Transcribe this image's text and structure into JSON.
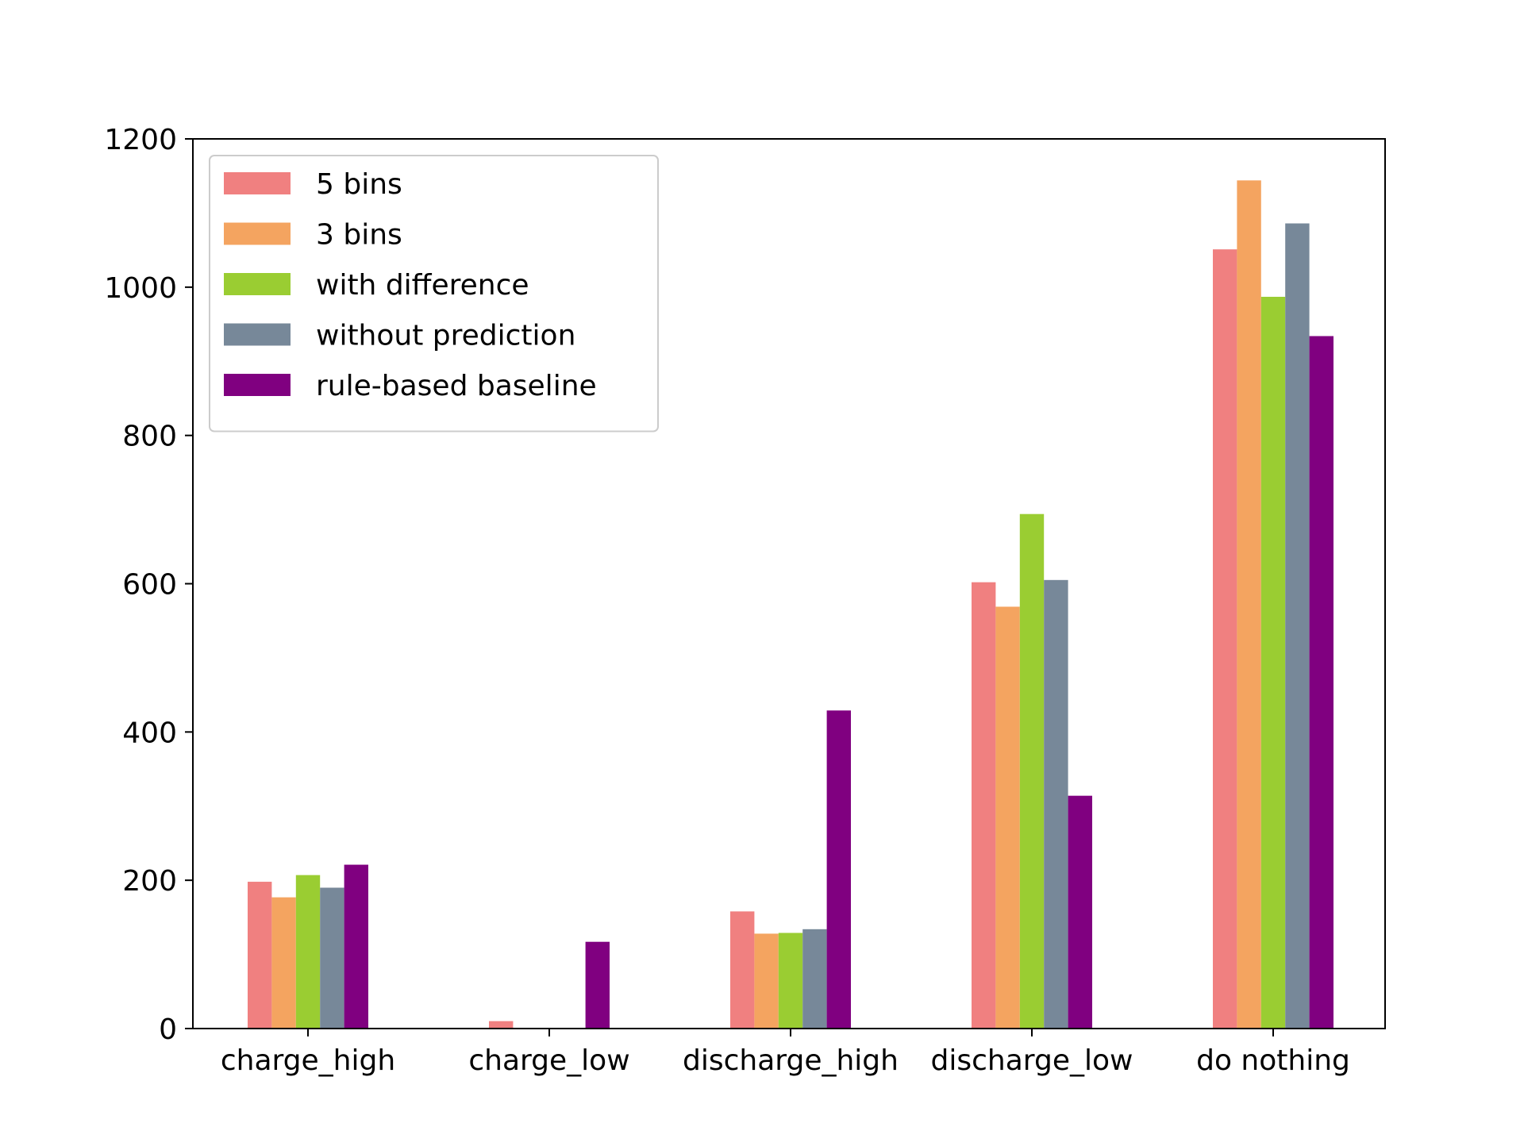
{
  "chart_data": {
    "type": "bar",
    "title": "",
    "xlabel": "",
    "ylabel": "",
    "categories": [
      "charge_high",
      "charge_low",
      "discharge_high",
      "discharge_low",
      "do nothing"
    ],
    "ylim": [
      0,
      1200
    ],
    "yticks": [
      0,
      200,
      400,
      600,
      800,
      1000,
      1200
    ],
    "grid": false,
    "legend_position": "top-left",
    "series": [
      {
        "name": "5 bins",
        "color": "#F08080",
        "values": [
          198,
          10,
          158,
          602,
          1051
        ]
      },
      {
        "name": "3 bins",
        "color": "#F4A460",
        "values": [
          177,
          0,
          128,
          569,
          1144
        ]
      },
      {
        "name": "with difference",
        "color": "#9ACD32",
        "values": [
          207,
          0,
          129,
          694,
          987
        ]
      },
      {
        "name": "without prediction",
        "color": "#778899",
        "values": [
          190,
          0,
          134,
          605,
          1086
        ]
      },
      {
        "name": "rule-based baseline",
        "color": "#800080",
        "values": [
          221,
          117,
          429,
          314,
          934
        ]
      }
    ]
  }
}
